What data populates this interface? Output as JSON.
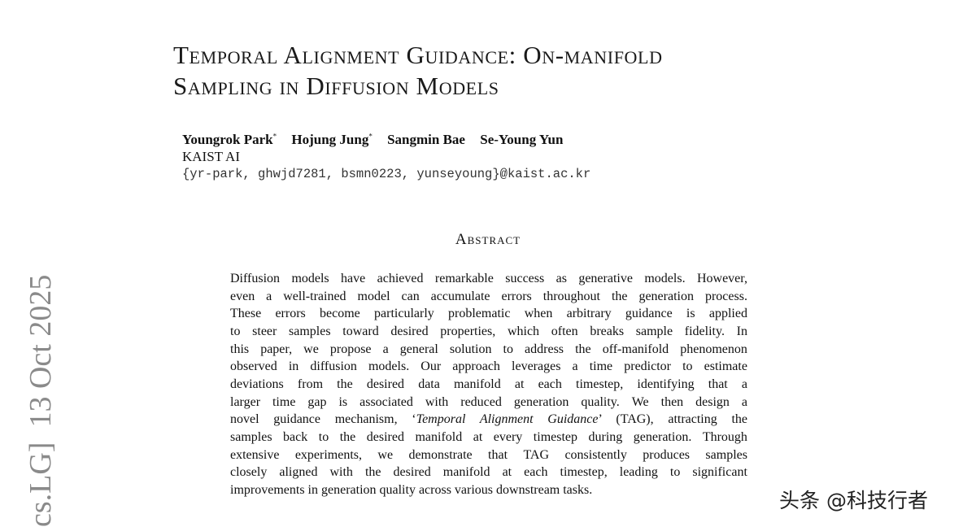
{
  "paper": {
    "title_line1": "Temporal Alignment Guidance: On-manifold",
    "title_line2": "Sampling in Diffusion Models",
    "authors": [
      {
        "name": "Youngrok Park",
        "mark": "*"
      },
      {
        "name": "Hojung Jung",
        "mark": "*"
      },
      {
        "name": "Sangmin Bae",
        "mark": ""
      },
      {
        "name": "Se-Young Yun",
        "mark": ""
      }
    ],
    "affiliation": "KAIST AI",
    "emails": "{yr-park, ghwjd7281, bsmn0223, yunseyoung}@kaist.ac.kr",
    "abstract_heading": "Abstract",
    "abstract_lines": [
      "Diffusion models have achieved remarkable success as generative models. However,",
      "even a well-trained model can accumulate errors throughout the generation process.",
      "These errors become particularly problematic when arbitrary guidance is applied",
      "to steer samples toward desired properties, which often breaks sample fidelity. In",
      "this paper, we propose a general solution to address the off-manifold phenomenon",
      "observed in diffusion models. Our approach leverages a time predictor to estimate",
      "deviations from the desired data manifold at each timestep, identifying that a",
      "larger time gap is associated with reduced generation quality. We then design a",
      "",
      "samples back to the desired manifold at every timestep during generation. Through",
      "extensive experiments, we demonstrate that TAG consistently produces samples",
      "closely aligned with the desired manifold at each timestep, leading to significant",
      "improvements in generation quality across various downstream tasks."
    ],
    "abstract_line9": {
      "before": "novel guidance mechanism, ‘",
      "italic": "Temporal Alignment Guidance",
      "after": "’ (TAG), attracting the"
    }
  },
  "arxiv_stamp": {
    "category": "cs.LG]",
    "date": "13 Oct 2025"
  },
  "watermark": "头条 @科技行者"
}
